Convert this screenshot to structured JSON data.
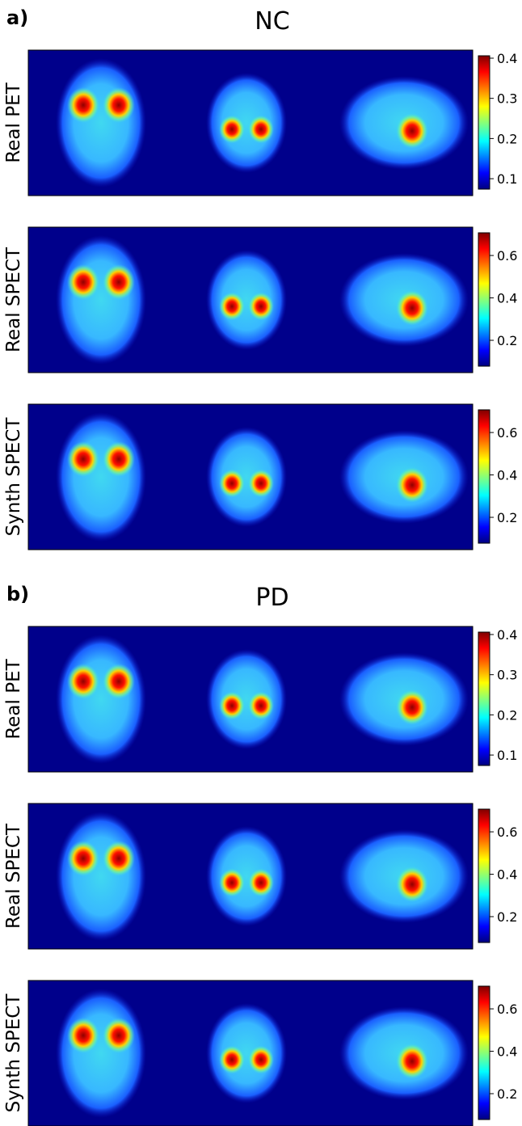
{
  "panels": [
    {
      "label": "a)",
      "title": "NC",
      "rows": [
        {
          "label": "Real PET",
          "colorbar": {
            "lim": [
              0.074,
              0.406
            ],
            "ticks": [
              0.1,
              0.2,
              0.3,
              0.4
            ]
          }
        },
        {
          "label": "Real SPECT",
          "colorbar": {
            "lim": [
              0.078,
              0.707
            ],
            "ticks": [
              0.2,
              0.4,
              0.6
            ]
          }
        },
        {
          "label": "Synth SPECT",
          "colorbar": {
            "lim": [
              0.078,
              0.707
            ],
            "ticks": [
              0.2,
              0.4,
              0.6
            ]
          }
        }
      ]
    },
    {
      "label": "b)",
      "title": "PD",
      "rows": [
        {
          "label": "Real PET",
          "colorbar": {
            "lim": [
              0.074,
              0.406
            ],
            "ticks": [
              0.1,
              0.2,
              0.3,
              0.4
            ]
          }
        },
        {
          "label": "Real SPECT",
          "colorbar": {
            "lim": [
              0.078,
              0.707
            ],
            "ticks": [
              0.2,
              0.4,
              0.6
            ]
          }
        },
        {
          "label": "Synth SPECT",
          "colorbar": {
            "lim": [
              0.078,
              0.707
            ],
            "ticks": [
              0.2,
              0.4,
              0.6
            ]
          }
        }
      ]
    }
  ]
}
